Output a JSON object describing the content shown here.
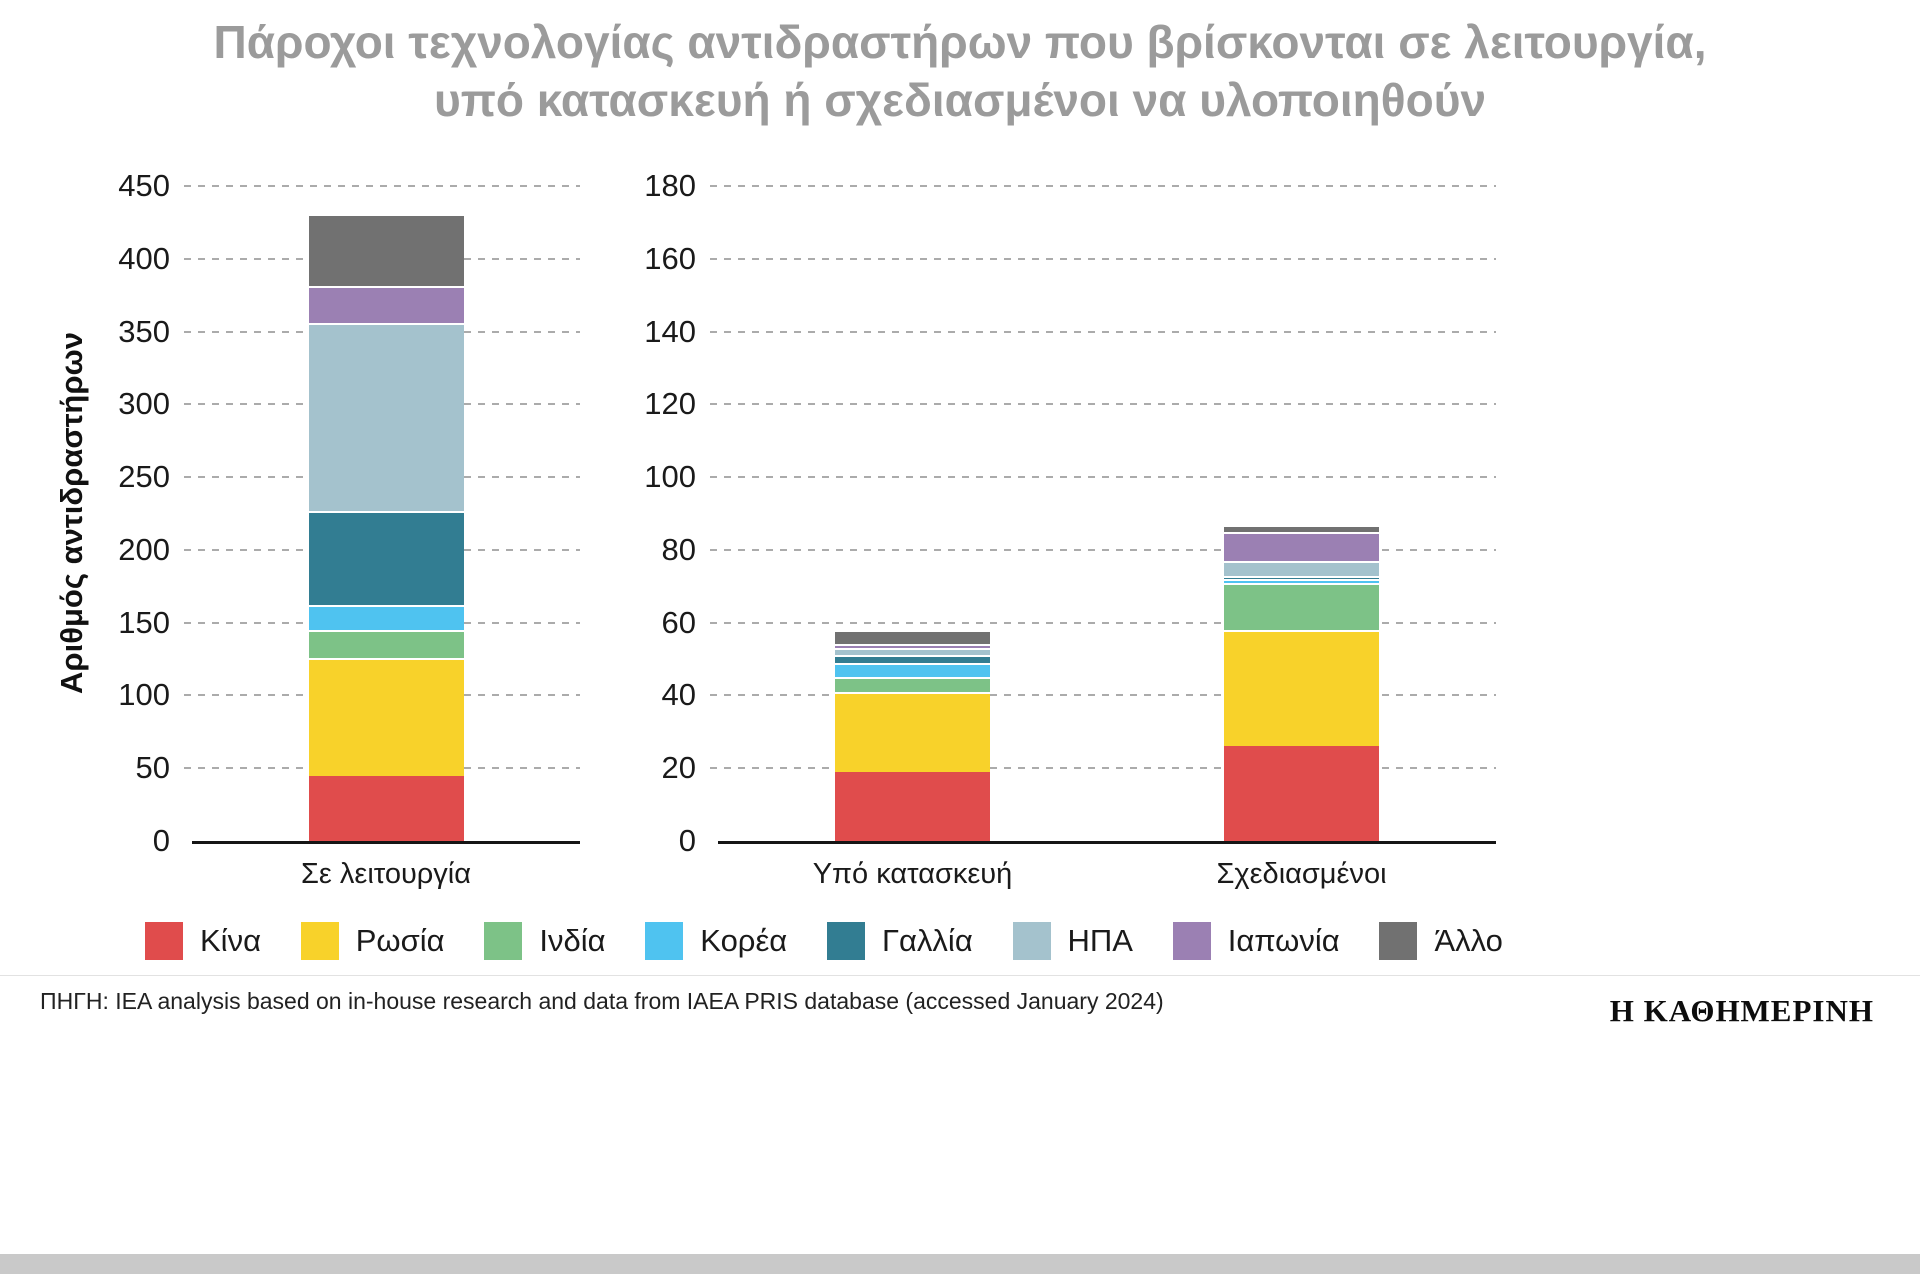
{
  "title": {
    "line1": "Πάροχοι τεχνολογίας αντιδραστήρων που βρίσκονται σε λειτουργία,",
    "line2": "υπό κατασκευή ή σχεδιασμένοι να υλοποιηθούν"
  },
  "legend": [
    {
      "label": "Κίνα",
      "color": "#e04c4c"
    },
    {
      "label": "Ρωσία",
      "color": "#f8d22a"
    },
    {
      "label": "Ινδία",
      "color": "#7dc287"
    },
    {
      "label": "Κορέα",
      "color": "#4fc3f0"
    },
    {
      "label": "Γαλλία",
      "color": "#327d92"
    },
    {
      "label": "ΗΠΑ",
      "color": "#a4c2cd"
    },
    {
      "label": "Ιαπωνία",
      "color": "#9b80b3"
    },
    {
      "label": "Άλλο",
      "color": "#717171"
    }
  ],
  "chart_data": [
    {
      "type": "bar",
      "stacked": true,
      "title": "",
      "ylabel": "Αριθμός αντιδραστήρων",
      "categories": [
        "Σε λειτουργία"
      ],
      "ylim": [
        0,
        450
      ],
      "ytick_step": 50,
      "grid": "dashed",
      "legend_position": "bottom",
      "series": [
        {
          "name": "Κίνα",
          "color": "#e04c4c",
          "values": [
            45
          ]
        },
        {
          "name": "Ρωσία",
          "color": "#f8d22a",
          "values": [
            81
          ]
        },
        {
          "name": "Ινδία",
          "color": "#7dc287",
          "values": [
            19
          ]
        },
        {
          "name": "Κορέα",
          "color": "#4fc3f0",
          "values": [
            17
          ]
        },
        {
          "name": "Γαλλία",
          "color": "#327d92",
          "values": [
            65
          ]
        },
        {
          "name": "ΗΠΑ",
          "color": "#a4c2cd",
          "values": [
            129
          ]
        },
        {
          "name": "Ιαπωνία",
          "color": "#9b80b3",
          "values": [
            25
          ]
        },
        {
          "name": "Άλλο",
          "color": "#717171",
          "values": [
            50
          ]
        }
      ]
    },
    {
      "type": "bar",
      "stacked": true,
      "title": "",
      "ylabel": "",
      "categories": [
        "Υπό κατασκευή",
        "Σχεδιασμένοι"
      ],
      "ylim": [
        0,
        180
      ],
      "ytick_step": 20,
      "grid": "dashed",
      "legend_position": "bottom",
      "series": [
        {
          "name": "Κίνα",
          "color": "#e04c4c",
          "values": [
            19,
            26
          ]
        },
        {
          "name": "Ρωσία",
          "color": "#f8d22a",
          "values": [
            22,
            32
          ]
        },
        {
          "name": "Ινδία",
          "color": "#7dc287",
          "values": [
            4,
            13
          ]
        },
        {
          "name": "Κορέα",
          "color": "#4fc3f0",
          "values": [
            4,
            1
          ]
        },
        {
          "name": "Γαλλία",
          "color": "#327d92",
          "values": [
            2,
            1
          ]
        },
        {
          "name": "ΗΠΑ",
          "color": "#a4c2cd",
          "values": [
            2,
            4
          ]
        },
        {
          "name": "Ιαπωνία",
          "color": "#9b80b3",
          "values": [
            1,
            8
          ]
        },
        {
          "name": "Άλλο",
          "color": "#717171",
          "values": [
            4,
            2
          ]
        }
      ]
    }
  ],
  "footer": {
    "source": "ΠΗΓΗ: IEA analysis based on in-house research and data from IAEA PRIS database (accessed January 2024)",
    "brand": "Η ΚΑΘΗΜΕΡΙΝΗ"
  }
}
